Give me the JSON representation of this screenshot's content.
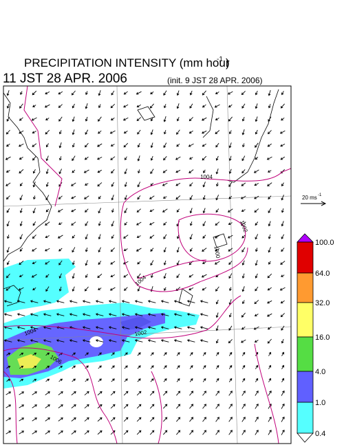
{
  "header": {
    "title": "PRECIPITATION INTENSITY (mm hour",
    "title_exponent": "-1",
    "title_close": ")",
    "valid_time": "11 JST 28 APR. 2006",
    "init_time": "(init. 9 JST 28 APR. 2006)"
  },
  "wind_scale": {
    "label": "20 ms",
    "exponent": "-1"
  },
  "colorbar": {
    "labels": [
      "100.0",
      "64.0",
      "32.0",
      "16.0",
      "4.0",
      "1.0",
      "0.4"
    ]
  },
  "contours": {
    "labels": [
      "1004",
      "1002",
      "1000",
      "1004",
      "1002",
      "1004",
      "1006"
    ]
  }
}
